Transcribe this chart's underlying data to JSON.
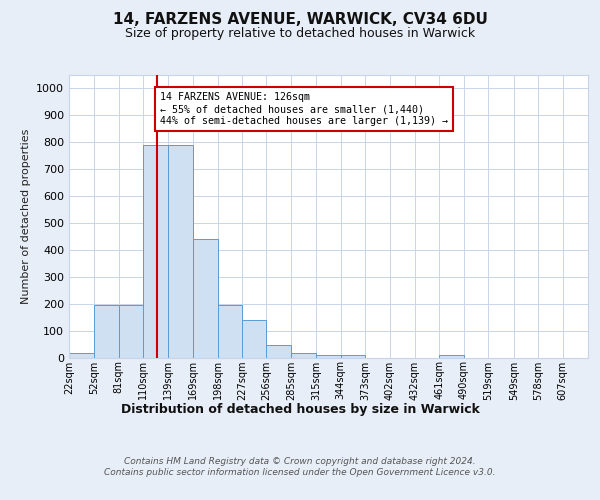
{
  "title1": "14, FARZENS AVENUE, WARWICK, CV34 6DU",
  "title2": "Size of property relative to detached houses in Warwick",
  "xlabel": "Distribution of detached houses by size in Warwick",
  "ylabel": "Number of detached properties",
  "footnote": "Contains HM Land Registry data © Crown copyright and database right 2024.\nContains public sector information licensed under the Open Government Licence v3.0.",
  "bin_edges": [
    22,
    52,
    81,
    110,
    139,
    169,
    198,
    227,
    256,
    285,
    315,
    344,
    373,
    402,
    432,
    461,
    490,
    519,
    549,
    578,
    607
  ],
  "bar_heights": [
    18,
    195,
    195,
    790,
    790,
    440,
    195,
    140,
    48,
    15,
    10,
    10,
    0,
    0,
    0,
    8,
    0,
    0,
    0,
    0
  ],
  "bar_color": "#cfe0f3",
  "bar_edge_color": "#5b9bd5",
  "red_line_x": 126,
  "red_line_color": "#cc0000",
  "annotation_text": "14 FARZENS AVENUE: 126sqm\n← 55% of detached houses are smaller (1,440)\n44% of semi-detached houses are larger (1,139) →",
  "annotation_box_color": "#ffffff",
  "annotation_box_edge": "#cc0000",
  "ylim": [
    0,
    1050
  ],
  "yticks": [
    0,
    100,
    200,
    300,
    400,
    500,
    600,
    700,
    800,
    900,
    1000
  ],
  "background_color": "#e8eef7",
  "axes_background": "#ffffff",
  "grid_color": "#c8d4e8"
}
